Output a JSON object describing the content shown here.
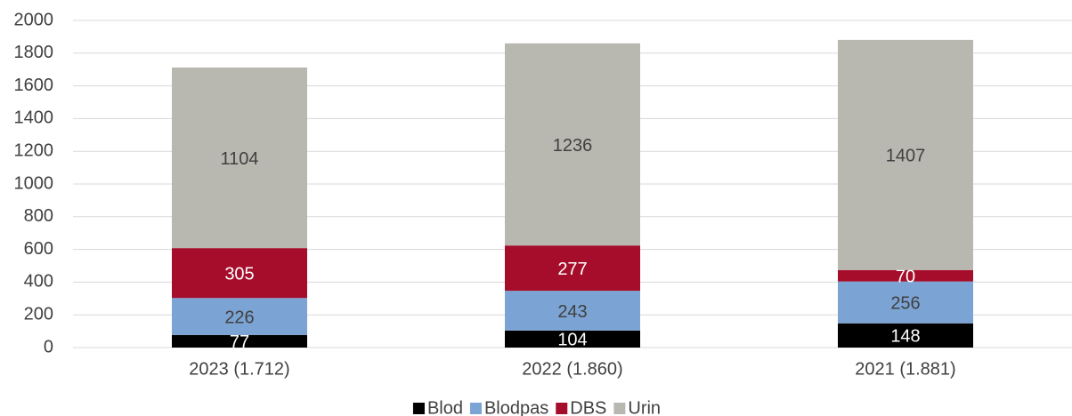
{
  "chart_data": {
    "type": "stacked_bar",
    "categories": [
      "2023 (1.712)",
      "2022 (1.860)",
      "2021 (1.881)"
    ],
    "series": [
      {
        "name": "Blod",
        "color": "#000000",
        "values": [
          77,
          104,
          148
        ]
      },
      {
        "name": "Blodpas",
        "color": "#7ba3d4",
        "values": [
          226,
          243,
          256
        ]
      },
      {
        "name": "DBS",
        "color": "#a50d2b",
        "values": [
          305,
          277,
          70
        ]
      },
      {
        "name": "Urin",
        "color": "#b8b8b0",
        "values": [
          1104,
          1236,
          1407
        ]
      }
    ],
    "ylim": [
      0,
      2000
    ],
    "yticks": [
      0,
      200,
      400,
      600,
      800,
      1000,
      1200,
      1400,
      1600,
      1800,
      2000
    ],
    "grid": true,
    "legend": "bottom"
  }
}
